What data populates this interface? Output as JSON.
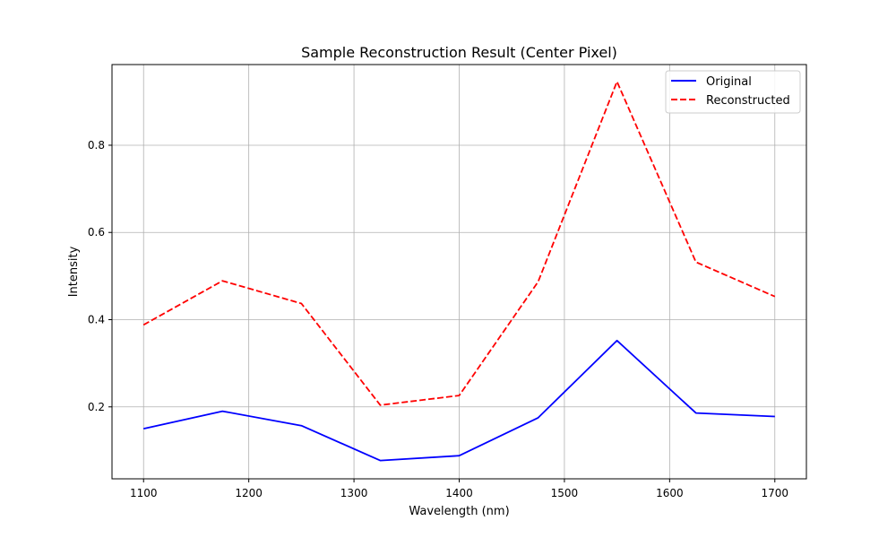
{
  "chart_data": {
    "type": "line",
    "title": "Sample Reconstruction Result (Center Pixel)",
    "xlabel": "Wavelength (nm)",
    "ylabel": "Intensity",
    "x": [
      1100,
      1175,
      1250,
      1325,
      1400,
      1475,
      1550,
      1625,
      1700
    ],
    "xlim": [
      1070,
      1730
    ],
    "ylim": [
      0.035,
      0.985
    ],
    "xticks": [
      1100,
      1200,
      1300,
      1400,
      1500,
      1600,
      1700
    ],
    "yticks": [
      0.2,
      0.4,
      0.6,
      0.8
    ],
    "ytick_labels": [
      "0.2",
      "0.4",
      "0.6",
      "0.8"
    ],
    "grid": true,
    "legend_position": "top-right",
    "series": [
      {
        "name": "Original",
        "color": "#0000ff",
        "style": "solid",
        "values": [
          0.15,
          0.19,
          0.157,
          0.077,
          0.088,
          0.175,
          0.352,
          0.186,
          0.178
        ]
      },
      {
        "name": "Reconstructed",
        "color": "#ff0000",
        "style": "dashed",
        "values": [
          0.388,
          0.489,
          0.437,
          0.204,
          0.226,
          0.487,
          0.946,
          0.532,
          0.453
        ]
      }
    ]
  }
}
